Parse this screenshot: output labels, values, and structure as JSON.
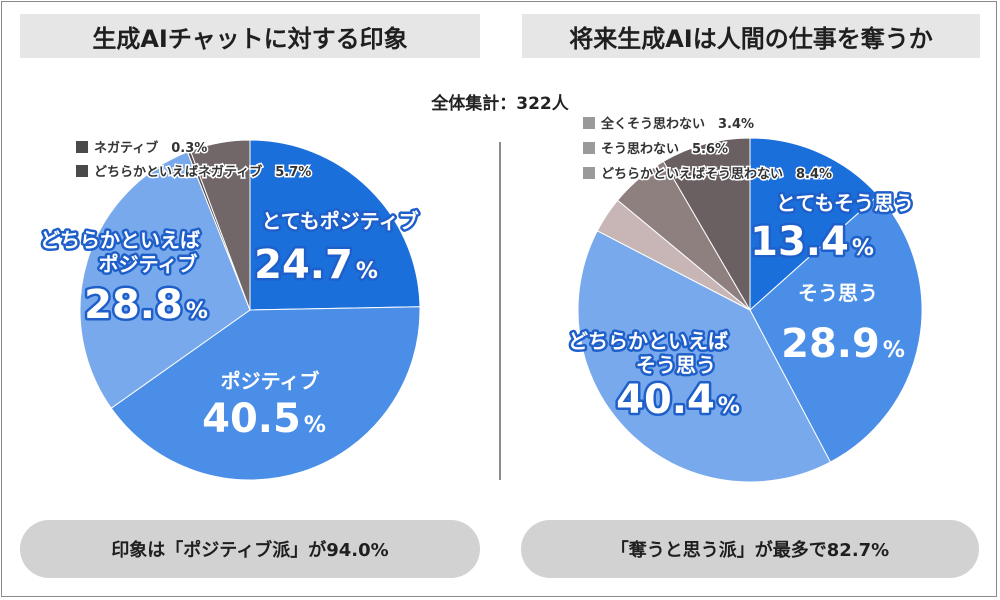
{
  "header": {
    "left_title": "生成AIチャットに対する印象",
    "right_title": "将来生成AIは人間の仕事を奪うか",
    "total_label": "全体集計：322人"
  },
  "summary": {
    "left": "印象は「ポジティブ派」が94.0%",
    "right": "「奪うと思う派」が最多で82.7%"
  },
  "chart_data": [
    {
      "type": "pie",
      "title": "生成AIチャットに対する印象",
      "slices": [
        {
          "label": "とてもポジティブ",
          "value": 24.7,
          "color": "#1a6fdb"
        },
        {
          "label": "ポジティブ",
          "value": 40.5,
          "color": "#4a8ee8"
        },
        {
          "label": "どちらかといえばポジティブ",
          "value": 28.8,
          "color": "#77a9ec"
        },
        {
          "label": "ネガティブ",
          "value": 0.3,
          "color": "#5b5152"
        },
        {
          "label": "どちらかといえばネガティブ",
          "value": 5.7,
          "color": "#716769"
        }
      ]
    },
    {
      "type": "pie",
      "title": "将来生成AIは人間の仕事を奪うか",
      "slices": [
        {
          "label": "とてもそう思う",
          "value": 13.4,
          "color": "#1a6fdb"
        },
        {
          "label": "そう思う",
          "value": 28.9,
          "color": "#4a8ee8"
        },
        {
          "label": "どちらかといえばそう思う",
          "value": 40.4,
          "color": "#77a9ec"
        },
        {
          "label": "全くそう思わない",
          "value": 3.4,
          "color": "#c8b6b6"
        },
        {
          "label": "そう思わない",
          "value": 5.6,
          "color": "#8f8080"
        },
        {
          "label": "どちらかといえばそう思わない",
          "value": 8.4,
          "color": "#6a6062"
        }
      ]
    }
  ]
}
